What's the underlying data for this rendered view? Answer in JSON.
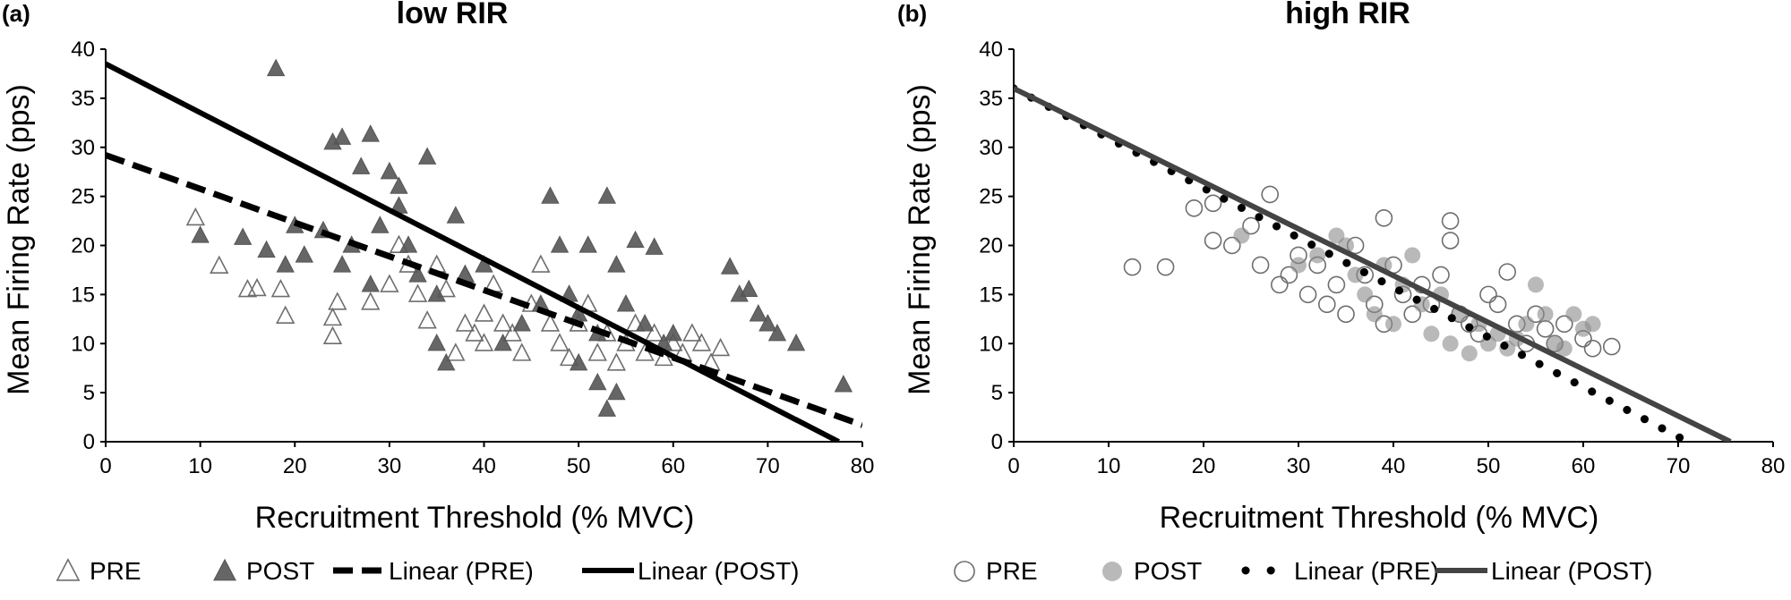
{
  "chart_data": [
    {
      "type": "scatter",
      "panel_label": "(a)",
      "title": "low RIR",
      "xlabel": "Recruitment Threshold (% MVC)",
      "ylabel": "Mean Firing Rate (pps)",
      "xlim": [
        0,
        80
      ],
      "ylim": [
        0,
        40
      ],
      "xticks": [
        0,
        10,
        20,
        30,
        40,
        50,
        60,
        70,
        80
      ],
      "yticks": [
        0,
        5,
        10,
        15,
        20,
        25,
        30,
        35,
        40
      ],
      "grid": false,
      "legend_position": "bottom",
      "legend": [
        "PRE",
        "POST",
        "Linear (PRE)",
        "Linear (POST)"
      ],
      "series": [
        {
          "name": "PRE",
          "marker": "open-triangle",
          "color": "#6e6e6e",
          "points": [
            [
              9.5,
              22.8
            ],
            [
              12,
              17.9
            ],
            [
              15,
              15.5
            ],
            [
              16,
              15.6
            ],
            [
              18.5,
              15.5
            ],
            [
              19,
              12.8
            ],
            [
              24,
              12.6
            ],
            [
              24,
              10.7
            ],
            [
              24.5,
              14.2
            ],
            [
              28,
              14.2
            ],
            [
              30,
              16
            ],
            [
              31,
              20
            ],
            [
              32,
              18
            ],
            [
              33,
              15
            ],
            [
              34,
              12.3
            ],
            [
              35,
              18
            ],
            [
              36,
              15.5
            ],
            [
              37,
              9
            ],
            [
              38,
              17
            ],
            [
              38,
              12
            ],
            [
              39,
              11
            ],
            [
              40,
              13
            ],
            [
              40,
              10
            ],
            [
              41,
              16
            ],
            [
              42,
              12
            ],
            [
              43,
              11
            ],
            [
              44,
              9
            ],
            [
              45,
              14
            ],
            [
              46,
              18
            ],
            [
              47,
              12
            ],
            [
              48,
              10
            ],
            [
              49,
              8.5
            ],
            [
              50,
              12
            ],
            [
              51,
              14
            ],
            [
              52,
              9
            ],
            [
              53,
              11
            ],
            [
              54,
              8
            ],
            [
              55,
              10
            ],
            [
              56,
              12
            ],
            [
              57,
              9
            ],
            [
              58,
              11
            ],
            [
              59,
              8.5
            ],
            [
              60,
              10
            ],
            [
              61,
              9
            ],
            [
              62,
              11
            ],
            [
              63,
              10
            ],
            [
              64,
              8
            ],
            [
              65,
              9.5
            ]
          ]
        },
        {
          "name": "POST",
          "marker": "filled-triangle",
          "color": "#555555",
          "points": [
            [
              10,
              21
            ],
            [
              14.5,
              20.8
            ],
            [
              17,
              19.5
            ],
            [
              18,
              38
            ],
            [
              19,
              18
            ],
            [
              20,
              22
            ],
            [
              21,
              19
            ],
            [
              23,
              21.5
            ],
            [
              24,
              30.5
            ],
            [
              25,
              31
            ],
            [
              25,
              18
            ],
            [
              26,
              20
            ],
            [
              27,
              28
            ],
            [
              28,
              31.3
            ],
            [
              28,
              16
            ],
            [
              29,
              22
            ],
            [
              30,
              27.5
            ],
            [
              31,
              26
            ],
            [
              31,
              24
            ],
            [
              32,
              20
            ],
            [
              33,
              17
            ],
            [
              34,
              29
            ],
            [
              35,
              15
            ],
            [
              35,
              10
            ],
            [
              36,
              8
            ],
            [
              37,
              23
            ],
            [
              38,
              17
            ],
            [
              40,
              18
            ],
            [
              42,
              10
            ],
            [
              44,
              12
            ],
            [
              46,
              14
            ],
            [
              47,
              25
            ],
            [
              48,
              20
            ],
            [
              49,
              15
            ],
            [
              50,
              13
            ],
            [
              51,
              20
            ],
            [
              52,
              11
            ],
            [
              53,
              25
            ],
            [
              54,
              18
            ],
            [
              55,
              14
            ],
            [
              56,
              20.5
            ],
            [
              57,
              12
            ],
            [
              58,
              19.8
            ],
            [
              59,
              10
            ],
            [
              60,
              11
            ],
            [
              66,
              17.8
            ],
            [
              67,
              15
            ],
            [
              68,
              15.5
            ],
            [
              69,
              13
            ],
            [
              70,
              12
            ],
            [
              71,
              11
            ],
            [
              73,
              10
            ],
            [
              78,
              5.8
            ],
            [
              53,
              3.3
            ],
            [
              54,
              5
            ],
            [
              52,
              6
            ],
            [
              50,
              8
            ]
          ]
        }
      ],
      "trendlines": [
        {
          "name": "Linear (PRE)",
          "style": "dashed",
          "color": "#000000",
          "x": [
            0,
            80
          ],
          "y": [
            29.2,
            1.7
          ]
        },
        {
          "name": "Linear (POST)",
          "style": "solid",
          "color": "#000000",
          "x": [
            0,
            77.5
          ],
          "y": [
            38.5,
            0
          ]
        }
      ]
    },
    {
      "type": "scatter",
      "panel_label": "(b)",
      "title": "high RIR",
      "xlabel": "Recruitment Threshold (% MVC)",
      "ylabel": "Mean Firing Rate (pps)",
      "xlim": [
        0,
        80
      ],
      "ylim": [
        0,
        40
      ],
      "xticks": [
        0,
        10,
        20,
        30,
        40,
        50,
        60,
        70,
        80
      ],
      "yticks": [
        0,
        5,
        10,
        15,
        20,
        25,
        30,
        35,
        40
      ],
      "grid": false,
      "legend_position": "bottom",
      "legend": [
        "PRE",
        "POST",
        "Linear (PRE)",
        "Linear (POST)"
      ],
      "series": [
        {
          "name": "PRE",
          "marker": "open-circle",
          "color": "#6e6e6e",
          "points": [
            [
              12.5,
              17.8
            ],
            [
              16,
              17.8
            ],
            [
              19,
              23.8
            ],
            [
              21,
              24.3
            ],
            [
              21,
              20.5
            ],
            [
              23,
              20
            ],
            [
              25,
              22
            ],
            [
              26,
              18
            ],
            [
              27,
              25.2
            ],
            [
              28,
              16
            ],
            [
              29,
              17
            ],
            [
              30,
              19
            ],
            [
              31,
              15
            ],
            [
              32,
              18
            ],
            [
              33,
              14
            ],
            [
              34,
              16
            ],
            [
              35,
              13
            ],
            [
              36,
              20
            ],
            [
              37,
              17
            ],
            [
              38,
              14
            ],
            [
              39,
              12
            ],
            [
              39,
              22.8
            ],
            [
              40,
              18
            ],
            [
              41,
              15
            ],
            [
              42,
              13
            ],
            [
              43,
              16
            ],
            [
              44,
              14
            ],
            [
              45,
              17
            ],
            [
              46,
              22.5
            ],
            [
              46,
              20.5
            ],
            [
              47,
              13
            ],
            [
              48,
              12
            ],
            [
              49,
              11
            ],
            [
              50,
              15
            ],
            [
              51,
              14
            ],
            [
              52,
              17.3
            ],
            [
              53,
              12
            ],
            [
              54,
              10
            ],
            [
              55,
              13
            ],
            [
              56,
              11.5
            ],
            [
              57,
              10
            ],
            [
              58,
              12
            ],
            [
              60,
              10.5
            ],
            [
              61,
              9.5
            ],
            [
              63,
              9.7
            ]
          ]
        },
        {
          "name": "POST",
          "marker": "filled-circle",
          "color": "#8a8a8a",
          "points": [
            [
              24,
              21
            ],
            [
              30,
              18
            ],
            [
              32,
              19
            ],
            [
              34,
              21
            ],
            [
              35,
              20
            ],
            [
              36,
              17
            ],
            [
              37,
              15
            ],
            [
              38,
              13
            ],
            [
              39,
              18
            ],
            [
              40,
              12
            ],
            [
              41,
              16
            ],
            [
              42,
              19
            ],
            [
              43,
              14
            ],
            [
              44,
              11
            ],
            [
              45,
              15
            ],
            [
              46,
              10
            ],
            [
              47,
              13
            ],
            [
              48,
              9
            ],
            [
              49,
              12
            ],
            [
              50,
              10
            ],
            [
              51,
              11
            ],
            [
              52,
              9.5
            ],
            [
              53,
              10.5
            ],
            [
              54,
              12
            ],
            [
              55,
              16
            ],
            [
              56,
              13
            ],
            [
              57,
              10
            ],
            [
              58,
              9.5
            ],
            [
              59,
              13
            ],
            [
              60,
              11.5
            ],
            [
              61,
              12
            ]
          ]
        }
      ],
      "trendlines": [
        {
          "name": "Linear (PRE)",
          "style": "dotted",
          "color": "#000000",
          "x": [
            0,
            71
          ],
          "y": [
            36,
            0
          ]
        },
        {
          "name": "Linear (POST)",
          "style": "solid",
          "color": "#444444",
          "x": [
            0,
            75.5
          ],
          "y": [
            36,
            0
          ]
        }
      ]
    }
  ]
}
